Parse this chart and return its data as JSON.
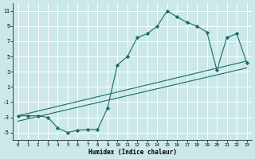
{
  "xlabel": "Humidex (Indice chaleur)",
  "xlim": [
    -0.5,
    23.5
  ],
  "ylim": [
    -6.0,
    12.0
  ],
  "yticks": [
    -5,
    -3,
    -1,
    1,
    3,
    5,
    7,
    9,
    11
  ],
  "xticks": [
    0,
    1,
    2,
    3,
    4,
    5,
    6,
    7,
    8,
    9,
    10,
    11,
    12,
    13,
    14,
    15,
    16,
    17,
    18,
    19,
    20,
    21,
    22,
    23
  ],
  "bg_color": "#cce8e8",
  "grid_color": "#ffffff",
  "line_color": "#1a6b6b",
  "line1_x": [
    0,
    1,
    2,
    3,
    4,
    5,
    6,
    7,
    8,
    9,
    10,
    11,
    12,
    13,
    14,
    15,
    16,
    17,
    18,
    19,
    20,
    21,
    22,
    23
  ],
  "line1_y": [
    -2.8,
    -2.8,
    -2.8,
    -3.0,
    -4.4,
    -5.0,
    -4.7,
    -4.6,
    -4.6,
    -1.8,
    3.9,
    5.0,
    7.5,
    8.0,
    9.0,
    11.0,
    10.2,
    9.5,
    9.0,
    8.2,
    3.2,
    7.5,
    8.0,
    4.2
  ],
  "line2_x": [
    0,
    23
  ],
  "line2_y": [
    -2.8,
    4.4
  ],
  "line3_x": [
    0,
    23
  ],
  "line3_y": [
    -3.5,
    3.5
  ]
}
